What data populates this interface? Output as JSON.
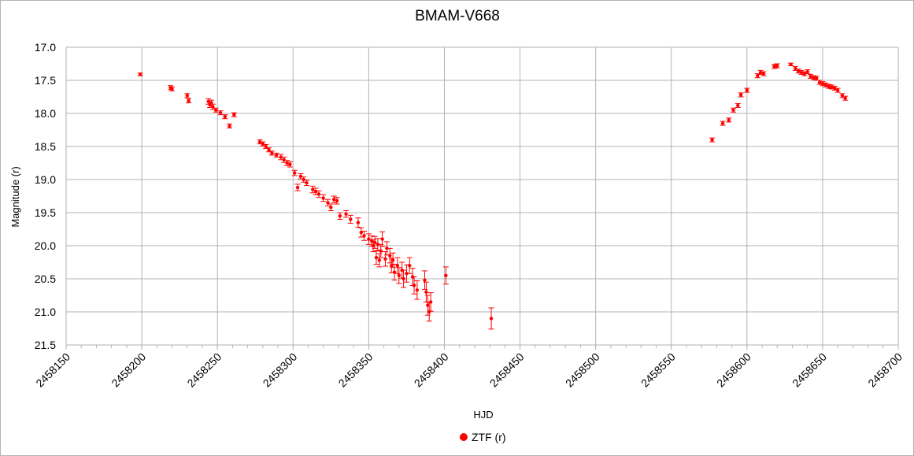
{
  "chart_data": {
    "type": "scatter",
    "title": "BMAM-V668",
    "xlabel": "HJD",
    "ylabel": "Magnitude (r)",
    "xlim": [
      2458150,
      2458700
    ],
    "ylim": [
      17.0,
      21.5
    ],
    "y_inverted": true,
    "grid": true,
    "legend": "bottom",
    "x_ticks": [
      2458150,
      2458200,
      2458250,
      2458300,
      2458350,
      2458400,
      2458450,
      2458500,
      2458550,
      2458600,
      2458650,
      2458700
    ],
    "y_ticks": [
      "17.0",
      "17.5",
      "18.0",
      "18.5",
      "19.0",
      "19.5",
      "20.0",
      "20.5",
      "21.0",
      "21.5"
    ],
    "series": [
      {
        "name": "ZTF (r)",
        "color": "#ff0000",
        "marker": "circle",
        "error_bars": true,
        "points": [
          [
            2458199,
            17.41,
            0.02
          ],
          [
            2458219,
            17.61,
            0.03
          ],
          [
            2458220,
            17.63,
            0.03
          ],
          [
            2458230,
            17.73,
            0.03
          ],
          [
            2458231,
            17.81,
            0.03
          ],
          [
            2458244,
            17.82,
            0.04
          ],
          [
            2458245,
            17.87,
            0.04
          ],
          [
            2458246,
            17.84,
            0.04
          ],
          [
            2458247,
            17.9,
            0.04
          ],
          [
            2458249,
            17.95,
            0.03
          ],
          [
            2458252,
            17.99,
            0.03
          ],
          [
            2458255,
            18.05,
            0.03
          ],
          [
            2458258,
            18.19,
            0.03
          ],
          [
            2458261,
            18.02,
            0.03
          ],
          [
            2458278,
            18.43,
            0.03
          ],
          [
            2458280,
            18.46,
            0.03
          ],
          [
            2458282,
            18.5,
            0.03
          ],
          [
            2458284,
            18.55,
            0.03
          ],
          [
            2458286,
            18.6,
            0.03
          ],
          [
            2458289,
            18.63,
            0.03
          ],
          [
            2458292,
            18.66,
            0.04
          ],
          [
            2458294,
            18.7,
            0.04
          ],
          [
            2458296,
            18.75,
            0.04
          ],
          [
            2458298,
            18.77,
            0.04
          ],
          [
            2458301,
            18.9,
            0.04
          ],
          [
            2458303,
            19.12,
            0.05
          ],
          [
            2458305,
            18.95,
            0.04
          ],
          [
            2458307,
            19.0,
            0.04
          ],
          [
            2458309,
            19.05,
            0.04
          ],
          [
            2458313,
            19.15,
            0.05
          ],
          [
            2458315,
            19.18,
            0.05
          ],
          [
            2458317,
            19.22,
            0.05
          ],
          [
            2458320,
            19.28,
            0.05
          ],
          [
            2458323,
            19.35,
            0.05
          ],
          [
            2458325,
            19.42,
            0.05
          ],
          [
            2458327,
            19.3,
            0.05
          ],
          [
            2458329,
            19.32,
            0.05
          ],
          [
            2458331,
            19.55,
            0.05
          ],
          [
            2458335,
            19.52,
            0.05
          ],
          [
            2458338,
            19.6,
            0.06
          ],
          [
            2458343,
            19.65,
            0.07
          ],
          [
            2458345,
            19.8,
            0.07
          ],
          [
            2458347,
            19.85,
            0.07
          ],
          [
            2458350,
            19.9,
            0.08
          ],
          [
            2458352,
            19.93,
            0.08
          ],
          [
            2458353,
            20.0,
            0.09
          ],
          [
            2458354,
            19.95,
            0.09
          ],
          [
            2458355,
            20.18,
            0.1
          ],
          [
            2458356,
            19.98,
            0.09
          ],
          [
            2458357,
            20.22,
            0.1
          ],
          [
            2458358,
            20.08,
            0.1
          ],
          [
            2458359,
            19.9,
            0.11
          ],
          [
            2458361,
            20.2,
            0.11
          ],
          [
            2458362,
            20.04,
            0.1
          ],
          [
            2458364,
            20.15,
            0.11
          ],
          [
            2458365,
            20.3,
            0.11
          ],
          [
            2458366,
            20.22,
            0.11
          ],
          [
            2458367,
            20.4,
            0.12
          ],
          [
            2458369,
            20.3,
            0.12
          ],
          [
            2458370,
            20.45,
            0.12
          ],
          [
            2458372,
            20.37,
            0.12
          ],
          [
            2458373,
            20.5,
            0.13
          ],
          [
            2458375,
            20.42,
            0.13
          ],
          [
            2458377,
            20.3,
            0.12
          ],
          [
            2458379,
            20.47,
            0.13
          ],
          [
            2458380,
            20.6,
            0.13
          ],
          [
            2458382,
            20.67,
            0.14
          ],
          [
            2458387,
            20.52,
            0.14
          ],
          [
            2458388,
            20.7,
            0.15
          ],
          [
            2458389,
            20.9,
            0.15
          ],
          [
            2458390,
            21.0,
            0.14
          ],
          [
            2458391,
            20.85,
            0.14
          ],
          [
            2458401,
            20.45,
            0.13
          ],
          [
            2458431,
            21.1,
            0.16
          ],
          [
            2458577,
            18.4,
            0.03
          ],
          [
            2458584,
            18.15,
            0.03
          ],
          [
            2458588,
            18.1,
            0.03
          ],
          [
            2458591,
            17.95,
            0.03
          ],
          [
            2458594,
            17.88,
            0.03
          ],
          [
            2458596,
            17.72,
            0.03
          ],
          [
            2458600,
            17.65,
            0.03
          ],
          [
            2458607,
            17.43,
            0.03
          ],
          [
            2458609,
            17.38,
            0.03
          ],
          [
            2458611,
            17.4,
            0.03
          ],
          [
            2458618,
            17.29,
            0.03
          ],
          [
            2458620,
            17.28,
            0.03
          ],
          [
            2458629,
            17.26,
            0.02
          ],
          [
            2458632,
            17.32,
            0.03
          ],
          [
            2458634,
            17.36,
            0.03
          ],
          [
            2458636,
            17.38,
            0.03
          ],
          [
            2458638,
            17.4,
            0.03
          ],
          [
            2458640,
            17.37,
            0.03
          ],
          [
            2458642,
            17.44,
            0.03
          ],
          [
            2458644,
            17.46,
            0.03
          ],
          [
            2458646,
            17.47,
            0.03
          ],
          [
            2458648,
            17.53,
            0.03
          ],
          [
            2458650,
            17.55,
            0.03
          ],
          [
            2458652,
            17.57,
            0.03
          ],
          [
            2458654,
            17.59,
            0.03
          ],
          [
            2458656,
            17.6,
            0.03
          ],
          [
            2458658,
            17.62,
            0.03
          ],
          [
            2458660,
            17.65,
            0.03
          ],
          [
            2458663,
            17.73,
            0.03
          ],
          [
            2458665,
            17.77,
            0.03
          ]
        ]
      }
    ]
  }
}
